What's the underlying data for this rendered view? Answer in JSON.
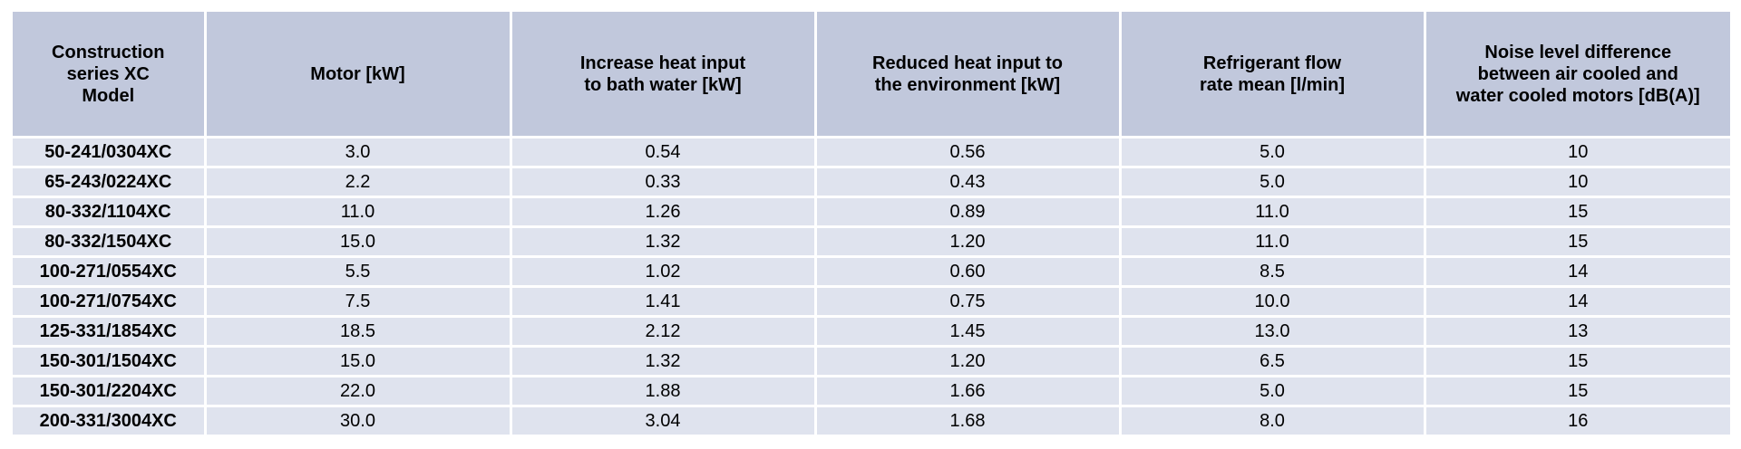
{
  "table": {
    "headers": [
      "Construction\nseries XC\nModel",
      "Motor [kW]",
      "Increase heat input\nto bath water [kW]",
      "Reduced heat input to\nthe environment [kW]",
      "Refrigerant flow\nrate mean [l/min]",
      "Noise level difference\nbetween air cooled and\nwater cooled motors [dB(A)]"
    ],
    "rows": [
      [
        "50-241/0304XC",
        "3.0",
        "0.54",
        "0.56",
        "5.0",
        "10"
      ],
      [
        "65-243/0224XC",
        "2.2",
        "0.33",
        "0.43",
        "5.0",
        "10"
      ],
      [
        "80-332/1104XC",
        "11.0",
        "1.26",
        "0.89",
        "11.0",
        "15"
      ],
      [
        "80-332/1504XC",
        "15.0",
        "1.32",
        "1.20",
        "11.0",
        "15"
      ],
      [
        "100-271/0554XC",
        "5.5",
        "1.02",
        "0.60",
        "8.5",
        "14"
      ],
      [
        "100-271/0754XC",
        "7.5",
        "1.41",
        "0.75",
        "10.0",
        "14"
      ],
      [
        "125-331/1854XC",
        "18.5",
        "2.12",
        "1.45",
        "13.0",
        "13"
      ],
      [
        "150-301/1504XC",
        "15.0",
        "1.32",
        "1.20",
        "6.5",
        "15"
      ],
      [
        "150-301/2204XC",
        "22.0",
        "1.88",
        "1.66",
        "5.0",
        "15"
      ],
      [
        "200-331/3004XC",
        "30.0",
        "3.04",
        "1.68",
        "8.0",
        "16"
      ]
    ]
  },
  "colors": {
    "header_background": "#c1c8dc",
    "cell_background": "#dfe3ee",
    "grid_lines": "#ffffff"
  }
}
